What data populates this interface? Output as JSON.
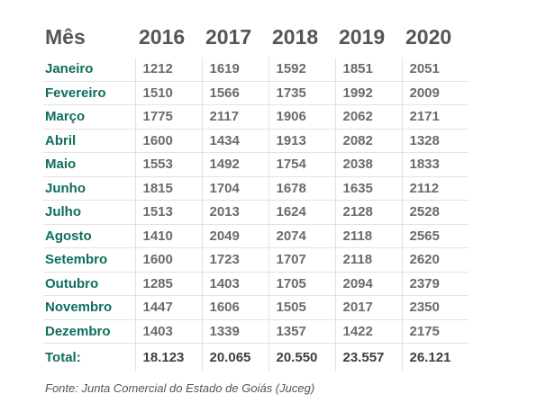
{
  "table": {
    "header": {
      "month": "Mês",
      "years": [
        "2016",
        "2017",
        "2018",
        "2019",
        "2020"
      ]
    },
    "rows": [
      {
        "month": "Janeiro",
        "values": [
          "1212",
          "1619",
          "1592",
          "1851",
          "2051"
        ]
      },
      {
        "month": "Fevereiro",
        "values": [
          "1510",
          "1566",
          "1735",
          "1992",
          "2009"
        ]
      },
      {
        "month": "Março",
        "values": [
          "1775",
          "2117",
          "1906",
          "2062",
          "2171"
        ]
      },
      {
        "month": "Abril",
        "values": [
          "1600",
          "1434",
          "1913",
          "2082",
          "1328"
        ]
      },
      {
        "month": "Maio",
        "values": [
          "1553",
          "1492",
          "1754",
          "2038",
          "1833"
        ]
      },
      {
        "month": "Junho",
        "values": [
          "1815",
          "1704",
          "1678",
          "1635",
          "2112"
        ]
      },
      {
        "month": "Julho",
        "values": [
          "1513",
          "2013",
          "1624",
          "2128",
          "2528"
        ]
      },
      {
        "month": "Agosto",
        "values": [
          "1410",
          "2049",
          "2074",
          "2118",
          "2565"
        ]
      },
      {
        "month": "Setembro",
        "values": [
          "1600",
          "1723",
          "1707",
          "2118",
          "2620"
        ]
      },
      {
        "month": "Outubro",
        "values": [
          "1285",
          "1403",
          "1705",
          "2094",
          "2379"
        ]
      },
      {
        "month": "Novembro",
        "values": [
          "1447",
          "1606",
          "1505",
          "2017",
          "2350"
        ]
      },
      {
        "month": "Dezembro",
        "values": [
          "1403",
          "1339",
          "1357",
          "1422",
          "2175"
        ]
      }
    ],
    "total": {
      "label": "Total:",
      "values": [
        "18.123",
        "20.065",
        "20.550",
        "23.557",
        "26.121"
      ]
    }
  },
  "source": "Fonte: Junta Comercial do Estado de Goiás (Juceg)",
  "colors": {
    "month_label": "#0e6e5a",
    "header_text": "#555555",
    "cell_text": "#6b6b6b",
    "grid": "#e2e2e2"
  }
}
